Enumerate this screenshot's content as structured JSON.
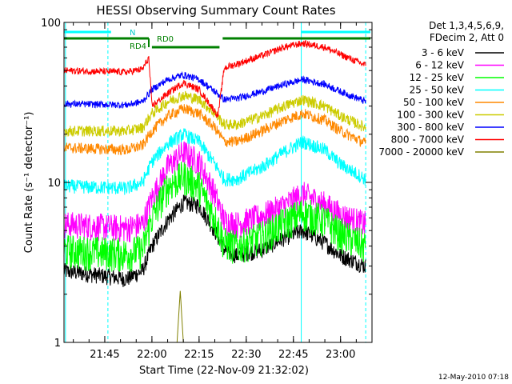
{
  "chart_data": {
    "type": "line",
    "title": "HESSI Observing Summary Count Rates",
    "xlabel": "Start Time (22-Nov-09 21:32:02)",
    "ylabel": "Count Rate (s⁻¹ detector⁻¹)",
    "x_range": [
      "21:32:02",
      "23:10:00"
    ],
    "y_scale": "log",
    "ylim": [
      1,
      100
    ],
    "x_ticks": [
      "21:45",
      "22:00",
      "22:15",
      "22:30",
      "22:45",
      "23:00"
    ],
    "y_ticks": [
      "1",
      "10",
      "100"
    ],
    "legend_header": [
      "Det 1,3,4,5,6,9,",
      "FDecim 2, Att 0"
    ],
    "legend_position": "right",
    "footer_date": "12-May-2010 07:18",
    "annotations": {
      "night_label": "N",
      "saa_labels": [
        "RD4",
        "RD0"
      ]
    },
    "orbit_markers": {
      "solid_cyan": [
        "21:32:30",
        "22:47:30"
      ],
      "dashed_cyan": [
        "21:46:00",
        "23:08:00"
      ],
      "night_bars": [
        [
          "21:32:02",
          "21:47:00"
        ],
        [
          "22:47:30",
          "23:09:30"
        ]
      ],
      "rd_bars": [
        [
          "21:32:02",
          "21:59:00"
        ],
        [
          "22:00:00",
          "22:21:30"
        ],
        [
          "22:22:30",
          "23:09:30"
        ]
      ]
    },
    "series": [
      {
        "name": "3 - 6 keV",
        "color": "#000000",
        "x": [
          "21:32",
          "21:52",
          "21:57",
          "22:00",
          "22:05",
          "22:10",
          "22:15",
          "22:20",
          "22:23",
          "22:27",
          "22:35",
          "22:42",
          "22:48",
          "22:55",
          "23:00",
          "23:08"
        ],
        "values": [
          2.8,
          2.5,
          2.8,
          4.0,
          5.8,
          7.5,
          7.2,
          5.0,
          3.8,
          3.5,
          3.8,
          4.5,
          5.0,
          4.2,
          3.5,
          3.0
        ]
      },
      {
        "name": "6 - 12 keV",
        "color": "#ff00ff",
        "x": [
          "21:32",
          "21:52",
          "21:57",
          "22:00",
          "22:05",
          "22:10",
          "22:15",
          "22:20",
          "22:23",
          "22:27",
          "22:35",
          "22:42",
          "22:48",
          "22:55",
          "23:00",
          "23:08"
        ],
        "values": [
          5.5,
          5.2,
          5.5,
          8.0,
          12.5,
          15.5,
          13.5,
          8.5,
          5.8,
          5.5,
          6.2,
          7.2,
          8.5,
          7.3,
          6.3,
          5.5
        ]
      },
      {
        "name": "12 - 25 keV",
        "color": "#00ff00",
        "x": [
          "21:32",
          "21:52",
          "21:57",
          "22:00",
          "22:05",
          "22:10",
          "22:15",
          "22:20",
          "22:23",
          "22:27",
          "22:35",
          "22:42",
          "22:48",
          "22:55",
          "23:00",
          "23:08"
        ],
        "values": [
          3.8,
          3.6,
          3.8,
          6.0,
          9.5,
          11.0,
          9.5,
          6.0,
          4.2,
          4.0,
          4.6,
          5.6,
          6.5,
          5.8,
          4.8,
          4.0
        ]
      },
      {
        "name": "25 - 50 keV",
        "color": "#00ffff",
        "x": [
          "21:32",
          "21:52",
          "21:57",
          "22:00",
          "22:05",
          "22:10",
          "22:15",
          "22:20",
          "22:23",
          "22:27",
          "22:35",
          "22:42",
          "22:48",
          "22:55",
          "23:00",
          "23:08"
        ],
        "values": [
          9.5,
          9.2,
          10.0,
          13.5,
          17.5,
          20.0,
          18.0,
          13.0,
          10.5,
          10.5,
          12.5,
          15.5,
          18.0,
          16.0,
          13.0,
          10.5
        ]
      },
      {
        "name": "50 - 100 keV",
        "color": "#ff8800",
        "x": [
          "21:32",
          "21:52",
          "21:57",
          "22:00",
          "22:05",
          "22:10",
          "22:15",
          "22:20",
          "22:23",
          "22:27",
          "22:35",
          "22:42",
          "22:48",
          "22:55",
          "23:00",
          "23:08"
        ],
        "values": [
          16.5,
          16.0,
          17.0,
          21.0,
          26.0,
          29.0,
          27.0,
          22.0,
          18.0,
          18.0,
          21.0,
          24.5,
          27.0,
          24.5,
          21.0,
          17.5
        ]
      },
      {
        "name": "100 - 300 keV",
        "color": "#cccc00",
        "x": [
          "21:32",
          "21:52",
          "21:57",
          "22:00",
          "22:05",
          "22:10",
          "22:15",
          "22:20",
          "22:23",
          "22:27",
          "22:35",
          "22:42",
          "22:48",
          "22:55",
          "23:00",
          "23:08"
        ],
        "values": [
          21.0,
          21.0,
          22.0,
          27.0,
          32.0,
          35.0,
          33.0,
          27.0,
          23.0,
          23.0,
          26.0,
          30.0,
          33.0,
          30.0,
          26.0,
          22.0
        ]
      },
      {
        "name": "300 - 800 keV",
        "color": "#0000ff",
        "x": [
          "21:32",
          "21:52",
          "21:57",
          "22:00",
          "22:05",
          "22:10",
          "22:15",
          "22:20",
          "22:23",
          "22:27",
          "22:35",
          "22:42",
          "22:48",
          "22:55",
          "23:00",
          "23:08"
        ],
        "values": [
          31.0,
          30.5,
          32.0,
          38.0,
          44.0,
          47.0,
          44.0,
          37.0,
          33.0,
          33.5,
          37.0,
          41.0,
          44.0,
          41.0,
          37.0,
          32.0
        ]
      },
      {
        "name": "800 - 7000 keV",
        "color": "#ff0000",
        "x": [
          "21:32",
          "21:52",
          "21:57",
          "21:59",
          "22:00",
          "22:05",
          "22:10",
          "22:15",
          "22:20",
          "22:21",
          "22:23",
          "22:27",
          "22:35",
          "22:42",
          "22:48",
          "22:55",
          "23:00",
          "23:08"
        ],
        "values": [
          50.0,
          49.0,
          51.0,
          60.0,
          30.0,
          36.0,
          42.0,
          38.0,
          28.0,
          26.0,
          52.0,
          55.0,
          62.0,
          70.0,
          74.0,
          70.0,
          63.0,
          54.0
        ]
      },
      {
        "name": "7000 - 20000 keV",
        "color": "#808000",
        "x": [
          "22:08",
          "22:09",
          "22:10"
        ],
        "values": [
          1.0,
          2.1,
          1.0
        ]
      }
    ]
  }
}
